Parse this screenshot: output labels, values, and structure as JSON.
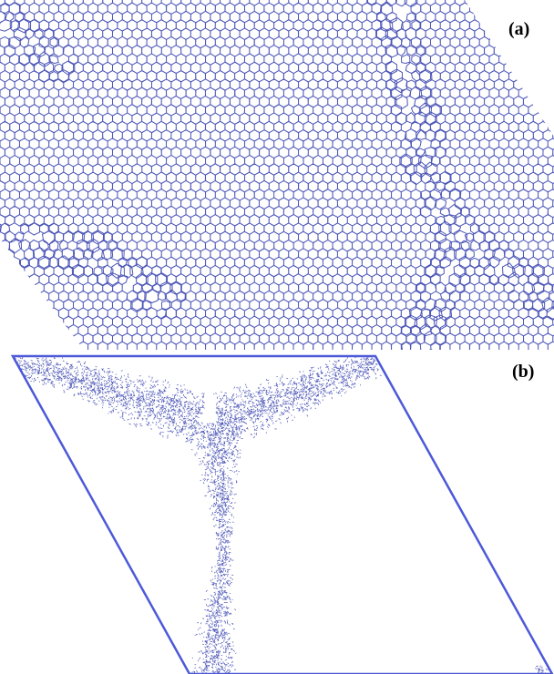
{
  "figure": {
    "panels": [
      {
        "id": "a",
        "label": "(a)"
      },
      {
        "id": "b",
        "label": "(b)"
      }
    ]
  },
  "colors": {
    "structure": "#4d57b7",
    "border": "#4c59d8",
    "background": "#ffffff"
  }
}
